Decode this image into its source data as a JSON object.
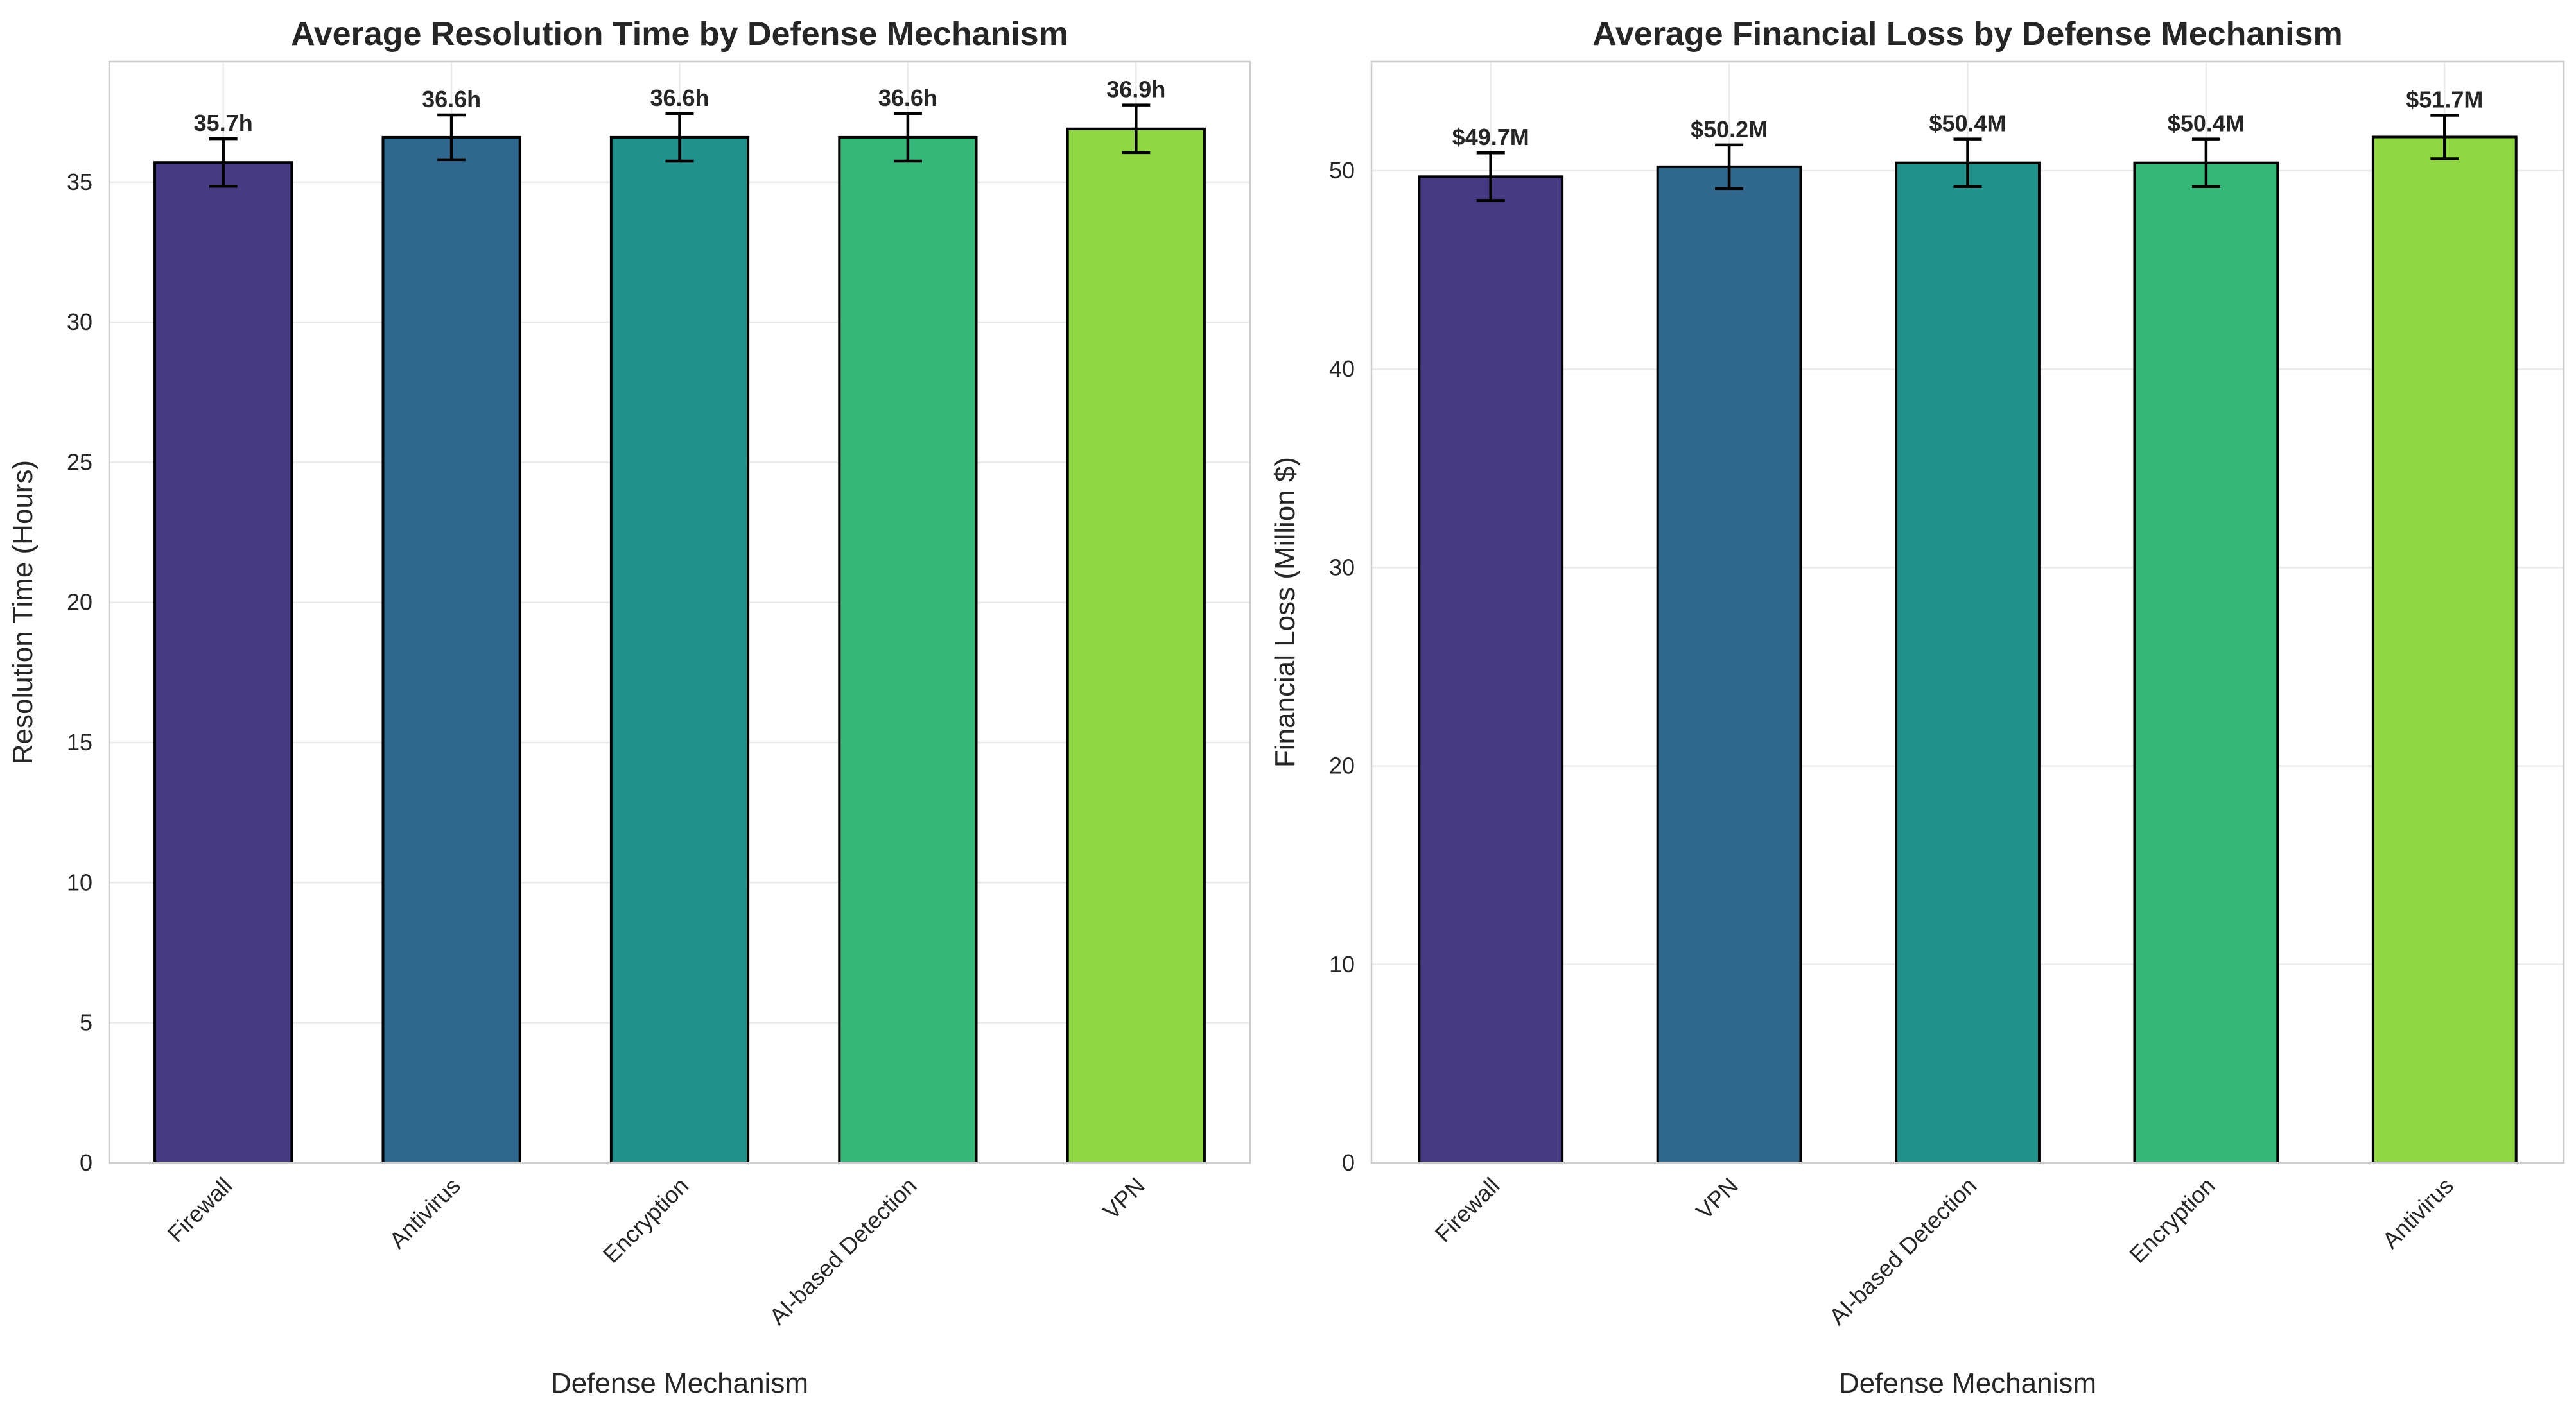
{
  "chart_data": [
    {
      "type": "bar",
      "title": "Average Resolution Time by Defense Mechanism",
      "xlabel": "Defense Mechanism",
      "ylabel": "Resolution Time (Hours)",
      "ylim": [
        0,
        39.3
      ],
      "yticks": [
        0,
        5,
        10,
        15,
        20,
        25,
        30,
        35
      ],
      "grid": true,
      "categories": [
        "Firewall",
        "Antivirus",
        "Encryption",
        "AI-based Detection",
        "VPN"
      ],
      "values": [
        35.7,
        36.6,
        36.6,
        36.6,
        36.9
      ],
      "errors": [
        0.85,
        0.8,
        0.85,
        0.85,
        0.85
      ],
      "labels": [
        "35.7h",
        "36.6h",
        "36.6h",
        "36.6h",
        "36.9h"
      ],
      "colors": [
        "#463a82",
        "#30688d",
        "#21918c",
        "#35b779",
        "#90d743"
      ]
    },
    {
      "type": "bar",
      "title": "Average Financial Loss by Defense Mechanism",
      "xlabel": "Defense Mechanism",
      "ylabel": "Financial Loss (Million $)",
      "ylim": [
        0,
        55.5
      ],
      "yticks": [
        0,
        10,
        20,
        30,
        40,
        50
      ],
      "grid": true,
      "categories": [
        "Firewall",
        "VPN",
        "AI-based Detection",
        "Encryption",
        "Antivirus"
      ],
      "values": [
        49.7,
        50.2,
        50.4,
        50.4,
        51.7
      ],
      "errors": [
        1.2,
        1.1,
        1.2,
        1.2,
        1.1
      ],
      "labels": [
        "$49.7M",
        "$50.2M",
        "$50.4M",
        "$50.4M",
        "$51.7M"
      ],
      "colors": [
        "#463a82",
        "#30688d",
        "#21918c",
        "#35b779",
        "#90d743"
      ]
    }
  ]
}
